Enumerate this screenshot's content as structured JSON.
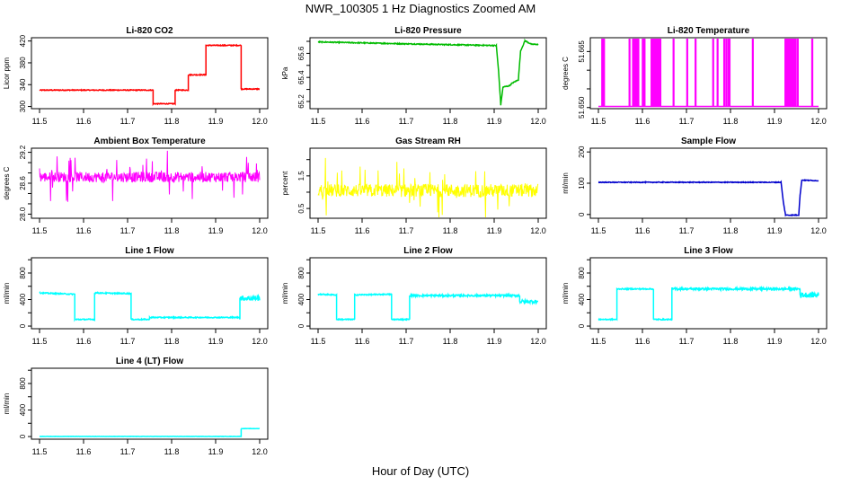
{
  "page": {
    "title": "NWR_100305  1 Hz Diagnostics Zoomed AM",
    "xlabel": "Hour of Day (UTC)"
  },
  "chart_data": [
    {
      "type": "line",
      "title": "Li-820 CO2",
      "ylabel": "Licor ppm",
      "color": "#ff0000",
      "xlim": [
        11.5,
        12.0
      ],
      "ylim": [
        296,
        426
      ],
      "xticks": [
        11.5,
        11.6,
        11.7,
        11.8,
        11.9,
        12.0
      ],
      "yticks": [
        300,
        340,
        380,
        420
      ],
      "x": [
        11.5,
        11.758,
        11.758,
        11.808,
        11.808,
        11.838,
        11.838,
        11.878,
        11.878,
        11.958,
        11.958,
        12.0
      ],
      "y": [
        330,
        330,
        305,
        305,
        330,
        330,
        358,
        358,
        412,
        412,
        332,
        332
      ],
      "noise": 0.8
    },
    {
      "type": "line",
      "title": "Li-820 Pressure",
      "ylabel": "kPa",
      "color": "#00bb00",
      "xlim": [
        11.5,
        12.0
      ],
      "ylim": [
        65.14,
        65.73
      ],
      "xticks": [
        11.5,
        11.6,
        11.7,
        11.8,
        11.9,
        12.0
      ],
      "yticks": [
        65.2,
        65.3,
        65.4,
        65.5,
        65.6,
        65.7
      ],
      "ytick_labels": [
        "65.2",
        "",
        "65.4",
        "",
        "65.6",
        ""
      ],
      "x": [
        11.5,
        11.65,
        11.8,
        11.905,
        11.91,
        11.915,
        11.92,
        11.935,
        11.94,
        11.955,
        11.96,
        11.97,
        11.985,
        12.0
      ],
      "y": [
        65.695,
        65.683,
        65.672,
        65.665,
        65.45,
        65.17,
        65.32,
        65.33,
        65.35,
        65.38,
        65.62,
        65.705,
        65.675,
        65.675
      ],
      "noise": 0.004
    },
    {
      "type": "line",
      "title": "Li-820 Temperature",
      "ylabel": "degrees C",
      "color": "#ff00ff",
      "xlim": [
        11.5,
        12.0
      ],
      "ylim": [
        51.6497,
        51.6687
      ],
      "xticks": [
        11.5,
        11.6,
        11.7,
        11.8,
        11.9,
        12.0
      ],
      "yticks": [
        51.65,
        51.655,
        51.66,
        51.665
      ],
      "ytick_labels": [
        "51.650",
        "",
        "",
        "51.665"
      ],
      "baseline": 51.6503,
      "high": 51.6683,
      "spikes": [
        11.508,
        11.512,
        11.57,
        11.578,
        11.582,
        11.586,
        11.588,
        11.59,
        11.6,
        11.602,
        11.604,
        11.62,
        11.623,
        11.627,
        11.63,
        11.633,
        11.636,
        11.64,
        11.67,
        11.701,
        11.72,
        11.76,
        11.77,
        11.785,
        11.79,
        11.795,
        11.797,
        11.85,
        11.924,
        11.928,
        11.93,
        11.932,
        11.935,
        11.937,
        11.94,
        11.943,
        11.945,
        11.947,
        11.952,
        11.985
      ]
    },
    {
      "type": "line",
      "title": "Ambient Box Temperature",
      "ylabel": "degrees C",
      "color": "#ff00ff",
      "xlim": [
        11.5,
        12.0
      ],
      "ylim": [
        27.92,
        29.28
      ],
      "xticks": [
        11.5,
        11.6,
        11.7,
        11.8,
        11.9,
        12.0
      ],
      "yticks": [
        28.0,
        28.2,
        28.4,
        28.6,
        28.8,
        29.0,
        29.2
      ],
      "ytick_labels": [
        "28.0",
        "",
        "",
        "28.6",
        "",
        "",
        "29.2"
      ],
      "x": [
        11.5,
        12.0
      ],
      "y": [
        28.72,
        28.72
      ],
      "noise": 0.1,
      "spike_amp": 0.45
    },
    {
      "type": "line",
      "title": "Gas Stream RH",
      "ylabel": "percent",
      "color": "#ffff00",
      "xlim": [
        11.5,
        12.0
      ],
      "ylim": [
        0.2,
        2.35
      ],
      "xticks": [
        11.5,
        11.6,
        11.7,
        11.8,
        11.9,
        12.0
      ],
      "yticks": [
        0.5,
        1.0,
        1.5,
        2.0
      ],
      "ytick_labels": [
        "0.5",
        "",
        "1.5",
        ""
      ],
      "x": [
        11.5,
        12.0
      ],
      "y": [
        1.05,
        1.05
      ],
      "noise": 0.2,
      "spike_amp": 0.9
    },
    {
      "type": "line",
      "title": "Sample Flow",
      "ylabel": "ml/min",
      "color": "#0000cc",
      "xlim": [
        11.5,
        12.0
      ],
      "ylim": [
        -12,
        212
      ],
      "xticks": [
        11.5,
        11.6,
        11.7,
        11.8,
        11.9,
        12.0
      ],
      "yticks": [
        0,
        100,
        200
      ],
      "x": [
        11.5,
        11.915,
        11.92,
        11.925,
        11.955,
        11.958,
        11.962,
        12.0
      ],
      "y": [
        103,
        103,
        40,
        -2,
        -2,
        60,
        110,
        108
      ],
      "noise": 1.2
    },
    {
      "type": "line",
      "title": "Line 1 Flow",
      "ylabel": "ml/min",
      "color": "#00ffff",
      "xlim": [
        11.5,
        12.0
      ],
      "ylim": [
        -40,
        1030
      ],
      "xticks": [
        11.5,
        11.6,
        11.7,
        11.8,
        11.9,
        12.0
      ],
      "yticks": [
        0,
        200,
        400,
        600,
        800,
        1000
      ],
      "ytick_labels": [
        "0",
        "",
        "400",
        "",
        "800",
        ""
      ],
      "x": [
        11.5,
        11.58,
        11.58,
        11.625,
        11.625,
        11.708,
        11.708,
        11.75,
        11.75,
        11.955,
        11.955,
        12.0
      ],
      "y": [
        500,
        480,
        100,
        100,
        500,
        490,
        100,
        100,
        130,
        130,
        420,
        420
      ],
      "noise": 8,
      "noisy_ranges": [
        [
          11.955,
          12.0,
          40
        ]
      ]
    },
    {
      "type": "line",
      "title": "Line 2 Flow",
      "ylabel": "ml/min",
      "color": "#00ffff",
      "xlim": [
        11.5,
        12.0
      ],
      "ylim": [
        -40,
        1030
      ],
      "xticks": [
        11.5,
        11.6,
        11.7,
        11.8,
        11.9,
        12.0
      ],
      "yticks": [
        0,
        200,
        400,
        600,
        800,
        1000
      ],
      "ytick_labels": [
        "0",
        "",
        "400",
        "",
        "800",
        ""
      ],
      "x": [
        11.5,
        11.542,
        11.542,
        11.583,
        11.583,
        11.667,
        11.667,
        11.708,
        11.708,
        11.958,
        11.958,
        12.0
      ],
      "y": [
        480,
        470,
        100,
        100,
        470,
        480,
        100,
        100,
        460,
        460,
        370,
        370
      ],
      "noise": 8,
      "noisy_ranges": [
        [
          11.708,
          11.958,
          14
        ],
        [
          11.958,
          12.0,
          25
        ]
      ]
    },
    {
      "type": "line",
      "title": "Line 3 Flow",
      "ylabel": "ml/min",
      "color": "#00ffff",
      "xlim": [
        11.5,
        12.0
      ],
      "ylim": [
        -40,
        1030
      ],
      "xticks": [
        11.5,
        11.6,
        11.7,
        11.8,
        11.9,
        12.0
      ],
      "yticks": [
        0,
        200,
        400,
        600,
        800,
        1000
      ],
      "ytick_labels": [
        "0",
        "",
        "400",
        "",
        "800",
        ""
      ],
      "x": [
        11.5,
        11.542,
        11.542,
        11.625,
        11.625,
        11.667,
        11.667,
        11.958,
        11.958,
        12.0
      ],
      "y": [
        100,
        100,
        560,
        560,
        100,
        100,
        560,
        560,
        470,
        470
      ],
      "noise": 8,
      "noisy_ranges": [
        [
          11.667,
          11.958,
          16
        ],
        [
          11.958,
          12.0,
          40
        ]
      ]
    },
    {
      "type": "line",
      "title": "Line 4 (LT) Flow",
      "ylabel": "ml/min",
      "color": "#00ffff",
      "xlim": [
        11.5,
        12.0
      ],
      "ylim": [
        -40,
        1030
      ],
      "xticks": [
        11.5,
        11.6,
        11.7,
        11.8,
        11.9,
        12.0
      ],
      "yticks": [
        0,
        200,
        400,
        600,
        800,
        1000
      ],
      "ytick_labels": [
        "0",
        "",
        "400",
        "",
        "800",
        ""
      ],
      "x": [
        11.5,
        11.958,
        11.958,
        12.0
      ],
      "y": [
        2,
        2,
        120,
        120
      ],
      "noise": 2
    }
  ]
}
